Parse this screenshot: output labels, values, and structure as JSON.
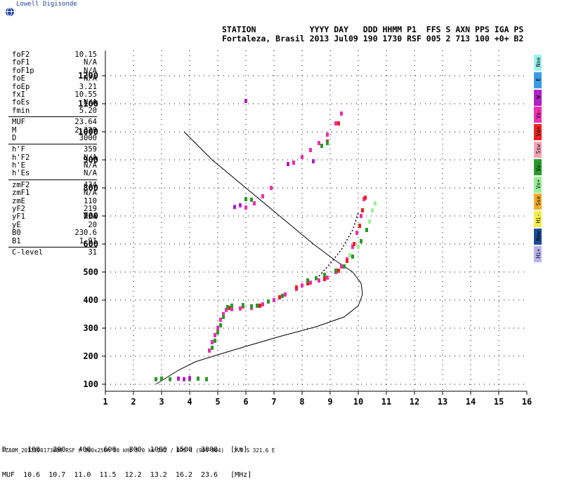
{
  "logo": {
    "text": "Lowell Digisonde",
    "icon": "globe-icon"
  },
  "header": {
    "row1": "STATION           YYYY DAY   DDD HHMM P1  FFS S AXN PPS IGA PS",
    "row2": "Fortaleza, Brasil 2013 Jul09 190 1730 RSF 005 2 713 100 +0+ B2"
  },
  "params": [
    {
      "label": "foF2",
      "value": "10.15"
    },
    {
      "label": "foF1",
      "value": "N/A"
    },
    {
      "label": "foF1p",
      "value": "N/A"
    },
    {
      "label": "foE",
      "value": "N/A"
    },
    {
      "label": "foEp",
      "value": "3.21"
    },
    {
      "label": "fxI",
      "value": "10.55"
    },
    {
      "label": "foEs",
      "value": "N/A"
    },
    {
      "label": "fmin",
      "value": "5.20"
    },
    {
      "sep": true
    },
    {
      "label": "MUF",
      "value": "23.64"
    },
    {
      "label": "M",
      "value": "2.329"
    },
    {
      "label": "D",
      "value": "3000"
    },
    {
      "sep": true
    },
    {
      "label": "h'F",
      "value": "359"
    },
    {
      "label": "h'F2",
      "value": "N/A"
    },
    {
      "label": "h'E",
      "value": "N/A"
    },
    {
      "label": "h'Es",
      "value": "N/A"
    },
    {
      "sep": true
    },
    {
      "label": "zmF2",
      "value": "434"
    },
    {
      "label": "zmF1",
      "value": "N/A"
    },
    {
      "label": "zmE",
      "value": "110"
    },
    {
      "label": "yF2",
      "value": "219"
    },
    {
      "label": "yF1",
      "value": "N/A"
    },
    {
      "label": "yE",
      "value": "20"
    },
    {
      "label": "B0",
      "value": "230.6"
    },
    {
      "label": "B1",
      "value": "1.91"
    },
    {
      "sep": true
    },
    {
      "label": "C-level",
      "value": "31"
    }
  ],
  "legend": [
    {
      "label": "Nne",
      "color": "#9cf3f0"
    },
    {
      "label": "E",
      "color": "#3a9de6"
    },
    {
      "label": "W",
      "color": "#b020c8"
    },
    {
      "label": "Vo-",
      "color": "#f02fb2"
    },
    {
      "label": "Vo+",
      "color": "#ee2020"
    },
    {
      "label": "Ssw",
      "color": "#f4a3b8"
    },
    {
      "label": "Vx-",
      "color": "#2a9a2a"
    },
    {
      "label": "Vx+",
      "color": "#98f098"
    },
    {
      "label": "Sse",
      "color": "#f3ab2a"
    },
    {
      "label": "Hi-",
      "color": "#f3ee4a"
    },
    {
      "label": "Nnw",
      "color": "#1c4c98"
    },
    {
      "label": "Hi+",
      "color": "#b8b4ec"
    }
  ],
  "bottom_table": {
    "row1": "D     100   200   400   600   800  1000  1500  3000   [km]",
    "row2": "MUF  10.6  10.7  11.0  11.5  12.2  13.2  16.2  23.6   [MHz]"
  },
  "footer": "FZA0M_2013190173000.RSF / 300x256h 50 kHz 5.0 km 2x2 / DPS-4 (904-904)   3.9 S 321.6 E",
  "chart_data": {
    "type": "scatter",
    "title": "",
    "xlabel": "",
    "ylabel": "",
    "xlim": [
      1,
      16
    ],
    "ylim": [
      75,
      1290
    ],
    "xticks": [
      1,
      2,
      3,
      4,
      5,
      6,
      7,
      8,
      9,
      10,
      11,
      12,
      13,
      14,
      15,
      16
    ],
    "yticks": [
      100,
      200,
      300,
      400,
      500,
      600,
      700,
      800,
      900,
      1000,
      1100,
      1200
    ],
    "grid": "dotted",
    "series": [
      {
        "name": "Vo-",
        "color": "#f02fb2",
        "points": [
          [
            4.7,
            220
          ],
          [
            4.8,
            250
          ],
          [
            4.9,
            275
          ],
          [
            5.0,
            300
          ],
          [
            5.1,
            330
          ],
          [
            5.2,
            350
          ],
          [
            5.3,
            365
          ],
          [
            5.5,
            368
          ],
          [
            5.8,
            370
          ],
          [
            6.2,
            372
          ],
          [
            6.6,
            385
          ],
          [
            7.0,
            400
          ],
          [
            7.4,
            420
          ],
          [
            7.8,
            440
          ],
          [
            8.0,
            452
          ],
          [
            8.3,
            462
          ],
          [
            8.6,
            470
          ],
          [
            8.9,
            480
          ],
          [
            9.2,
            500
          ],
          [
            9.4,
            520
          ],
          [
            9.6,
            545
          ],
          [
            9.8,
            590
          ],
          [
            9.95,
            640
          ],
          [
            10.1,
            700
          ],
          [
            10.2,
            760
          ],
          [
            6.0,
            730
          ],
          [
            6.3,
            745
          ],
          [
            6.6,
            770
          ],
          [
            6.9,
            800
          ],
          [
            7.7,
            890
          ],
          [
            8.0,
            910
          ],
          [
            8.3,
            935
          ],
          [
            8.6,
            960
          ],
          [
            8.9,
            990
          ],
          [
            9.2,
            1030
          ],
          [
            9.4,
            1065
          ]
        ]
      },
      {
        "name": "Vo+",
        "color": "#ee2020",
        "points": [
          [
            5.4,
            372
          ],
          [
            5.9,
            378
          ],
          [
            6.5,
            380
          ],
          [
            7.2,
            410
          ],
          [
            7.8,
            445
          ],
          [
            8.2,
            460
          ],
          [
            8.8,
            475
          ],
          [
            9.3,
            505
          ],
          [
            9.6,
            540
          ],
          [
            9.85,
            600
          ],
          [
            10.05,
            665
          ],
          [
            10.15,
            720
          ],
          [
            10.25,
            765
          ],
          [
            8.9,
            965
          ],
          [
            9.3,
            1030
          ]
        ]
      },
      {
        "name": "Vx-",
        "color": "#2a9a2a",
        "points": [
          [
            2.8,
            118
          ],
          [
            3.0,
            120
          ],
          [
            3.3,
            118
          ],
          [
            3.6,
            120
          ],
          [
            4.0,
            118
          ],
          [
            4.3,
            120
          ],
          [
            4.6,
            118
          ],
          [
            4.8,
            230
          ],
          [
            4.9,
            255
          ],
          [
            5.0,
            285
          ],
          [
            5.1,
            310
          ],
          [
            5.2,
            340
          ],
          [
            5.35,
            375
          ],
          [
            5.5,
            380
          ],
          [
            5.9,
            382
          ],
          [
            6.2,
            378
          ],
          [
            6.4,
            380
          ],
          [
            6.8,
            395
          ],
          [
            7.3,
            415
          ],
          [
            8.2,
            470
          ],
          [
            8.5,
            478
          ],
          [
            8.8,
            490
          ],
          [
            9.2,
            505
          ],
          [
            9.5,
            520
          ],
          [
            9.8,
            555
          ],
          [
            10.1,
            610
          ],
          [
            10.3,
            650
          ],
          [
            6.0,
            760
          ],
          [
            6.2,
            758
          ],
          [
            8.7,
            950
          ],
          [
            8.9,
            960
          ]
        ]
      },
      {
        "name": "Vx+",
        "color": "#98f098",
        "points": [
          [
            10.4,
            680
          ],
          [
            10.5,
            720
          ],
          [
            10.6,
            745
          ],
          [
            9.7,
            560
          ],
          [
            10.0,
            590
          ]
        ]
      },
      {
        "name": "W",
        "color": "#b020c8",
        "points": [
          [
            3.6,
            120
          ],
          [
            3.8,
            118
          ],
          [
            4.0,
            122
          ],
          [
            5.6,
            732
          ],
          [
            5.8,
            738
          ],
          [
            7.5,
            885
          ],
          [
            8.4,
            895
          ],
          [
            6.0,
            1110
          ]
        ]
      }
    ],
    "profile": {
      "name": "true height profile",
      "color": "#000000",
      "points": [
        [
          2.8,
          100
        ],
        [
          3.2,
          125
        ],
        [
          3.6,
          150
        ],
        [
          4.2,
          180
        ],
        [
          5.0,
          205
        ],
        [
          6.0,
          235
        ],
        [
          7.2,
          270
        ],
        [
          8.5,
          305
        ],
        [
          9.5,
          340
        ],
        [
          10.0,
          380
        ],
        [
          10.15,
          420
        ],
        [
          10.1,
          460
        ],
        [
          9.8,
          500
        ],
        [
          9.2,
          540
        ],
        [
          8.4,
          600
        ],
        [
          7.2,
          700
        ],
        [
          6.0,
          800
        ],
        [
          4.8,
          900
        ],
        [
          3.8,
          1000
        ]
      ]
    },
    "x_trace": {
      "name": "dotted trace",
      "color": "#000000",
      "points": [
        [
          8.6,
          485
        ],
        [
          9.0,
          530
        ],
        [
          9.4,
          580
        ],
        [
          9.8,
          650
        ],
        [
          10.0,
          710
        ]
      ]
    }
  }
}
